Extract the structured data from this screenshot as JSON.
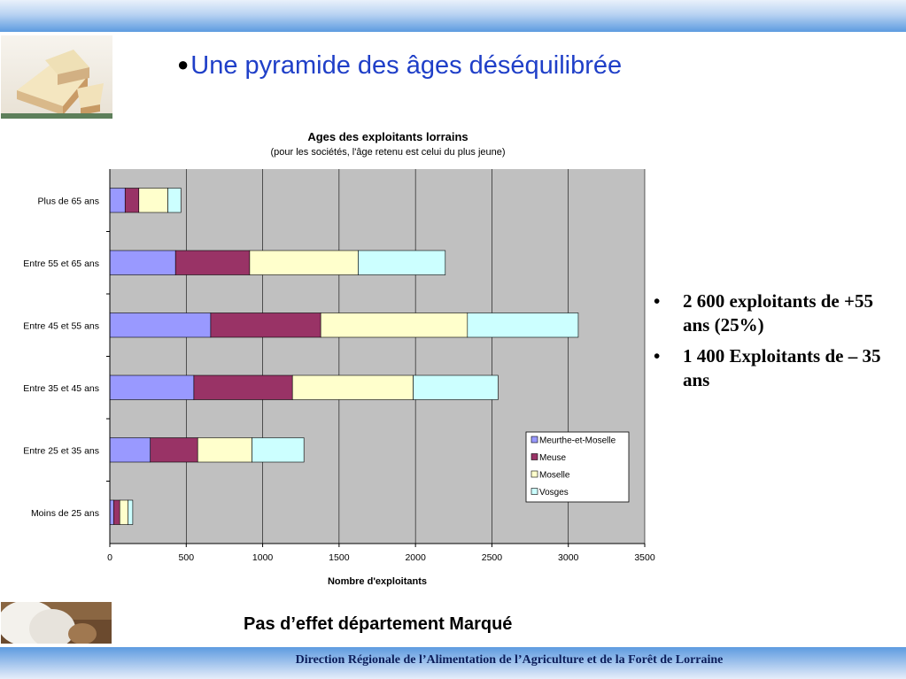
{
  "slide": {
    "title": "Une pyramide des âges déséquilibrée",
    "bullets": [
      "2 600 exploitants de +55 ans (25%)",
      "1 400 Exploitants de – 35 ans"
    ],
    "caption": "Pas d’effet département Marqué",
    "footer": "Direction Régionale de l’Alimentation de l’Agriculture et de la Forêt de Lorraine"
  },
  "chart_data": {
    "type": "bar",
    "orientation": "horizontal",
    "stacked": true,
    "title": "Ages des exploitants lorrains",
    "subtitle": "(pour les sociétés, l'âge retenu est celui du plus jeune)",
    "xlabel": "Nombre d'exploitants",
    "ylabel": "",
    "xlim": [
      0,
      3500
    ],
    "xticks": [
      "0",
      "500",
      "1000",
      "1500",
      "2000",
      "2500",
      "3000",
      "3500"
    ],
    "grid": true,
    "legend": "bottom-right",
    "categories": [
      "Plus de 65 ans",
      "Entre 55 et 65 ans",
      "Entre 45 et 55 ans",
      "Entre 35 et 45 ans",
      "Entre 25 et 35 ans",
      "Moins de 25 ans"
    ],
    "series": [
      {
        "name": "Meurthe-et-Moselle",
        "color": "#9999ff",
        "values": [
          100,
          430,
          660,
          550,
          265,
          25
        ]
      },
      {
        "name": "Meuse",
        "color": "#993366",
        "values": [
          90,
          485,
          720,
          645,
          310,
          40
        ]
      },
      {
        "name": "Moselle",
        "color": "#ffffcc",
        "values": [
          190,
          710,
          960,
          790,
          355,
          55
        ]
      },
      {
        "name": "Vosges",
        "color": "#ccffff",
        "values": [
          85,
          570,
          725,
          555,
          340,
          30
        ]
      }
    ]
  }
}
